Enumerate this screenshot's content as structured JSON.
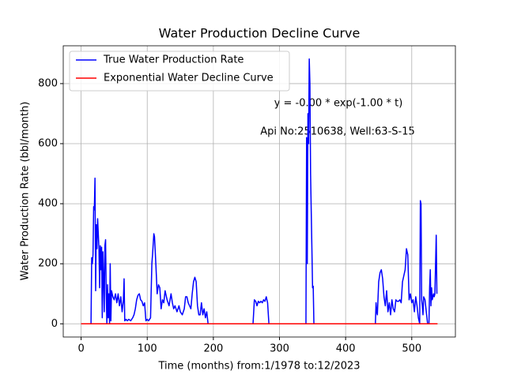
{
  "chart_data": {
    "type": "line",
    "title": "Water Production Decline Curve",
    "xlabel": "Time (months) from:1/1978 to:12/2023",
    "ylabel": "Water Production Rate (bbl/month)",
    "annotations": [
      "y = -0.00 * exp(-1.00 * t)",
      "Api No:2510638, Well:63-S-15"
    ],
    "xlim": [
      -27,
      566
    ],
    "ylim": [
      -44,
      926
    ],
    "xticks": [
      0,
      100,
      200,
      300,
      400,
      500
    ],
    "yticks": [
      0,
      200,
      400,
      600,
      800
    ],
    "grid": true,
    "legend": "upper left",
    "series": [
      {
        "name": "True Water Production Rate",
        "color": "#0000ff",
        "x": [
          13,
          15,
          16,
          17,
          18,
          19,
          20,
          21,
          22,
          23,
          24,
          25,
          26,
          27,
          28,
          29,
          30,
          31,
          32,
          33,
          34,
          35,
          36,
          37,
          38,
          39,
          40,
          41,
          42,
          43,
          44,
          45,
          46,
          48,
          50,
          52,
          54,
          56,
          58,
          60,
          62,
          64,
          65,
          66,
          68,
          70,
          72,
          75,
          78,
          80,
          82,
          84,
          86,
          88,
          90,
          92,
          94,
          96,
          98,
          100,
          102,
          105,
          107,
          108,
          110,
          111,
          113,
          115,
          117,
          119,
          121,
          123,
          125,
          127,
          130,
          133,
          136,
          138,
          140,
          142,
          145,
          148,
          150,
          153,
          156,
          158,
          160,
          162,
          164,
          166,
          168,
          170,
          172,
          174,
          176,
          178,
          180,
          182,
          184,
          186,
          188,
          190,
          192,
          260,
          262,
          264,
          266,
          268,
          270,
          272,
          274,
          276,
          278,
          280,
          282,
          284,
          340,
          341,
          342,
          343,
          344,
          345,
          346,
          347,
          349,
          350,
          351,
          352,
          430,
          445,
          446,
          447,
          448,
          450,
          452,
          454,
          456,
          458,
          460,
          462,
          464,
          466,
          468,
          470,
          472,
          474,
          476,
          478,
          480,
          482,
          484,
          486,
          488,
          490,
          492,
          494,
          496,
          498,
          500,
          502,
          504,
          506,
          508,
          510,
          512,
          513,
          514,
          515,
          516,
          517,
          518,
          520,
          522,
          524,
          526,
          527,
          528,
          529,
          530,
          531,
          533,
          534,
          535,
          537,
          538
        ],
        "values": [
          0,
          0,
          220,
          200,
          230,
          390,
          380,
          485,
          110,
          330,
          250,
          350,
          300,
          250,
          120,
          260,
          180,
          255,
          20,
          240,
          150,
          40,
          260,
          280,
          100,
          0,
          130,
          20,
          100,
          0,
          200,
          10,
          110,
          90,
          80,
          100,
          70,
          100,
          60,
          90,
          40,
          80,
          150,
          10,
          15,
          10,
          15,
          10,
          20,
          30,
          50,
          80,
          95,
          100,
          80,
          75,
          60,
          70,
          10,
          15,
          10,
          20,
          200,
          230,
          300,
          290,
          200,
          100,
          130,
          120,
          50,
          80,
          70,
          110,
          80,
          60,
          100,
          70,
          50,
          60,
          40,
          60,
          40,
          30,
          50,
          90,
          90,
          70,
          60,
          50,
          100,
          140,
          155,
          140,
          60,
          30,
          30,
          70,
          30,
          50,
          20,
          40,
          0,
          0,
          80,
          75,
          60,
          75,
          70,
          75,
          70,
          80,
          75,
          90,
          70,
          0,
          0,
          620,
          200,
          700,
          600,
          882,
          800,
          500,
          250,
          120,
          125,
          0,
          0,
          0,
          70,
          40,
          30,
          140,
          170,
          180,
          150,
          90,
          60,
          110,
          40,
          70,
          30,
          80,
          50,
          40,
          80,
          75,
          75,
          80,
          70,
          140,
          160,
          180,
          250,
          230,
          80,
          100,
          70,
          80,
          40,
          90,
          60,
          20,
          0,
          410,
          400,
          80,
          60,
          30,
          90,
          80,
          40,
          0,
          0,
          120,
          180,
          60,
          120,
          80,
          100,
          90,
          100,
          295,
          100
        ]
      },
      {
        "name": "Exponential Water Decline Curve",
        "color": "#ff0000",
        "x": [
          0,
          539
        ],
        "values": [
          0,
          0
        ]
      }
    ]
  }
}
